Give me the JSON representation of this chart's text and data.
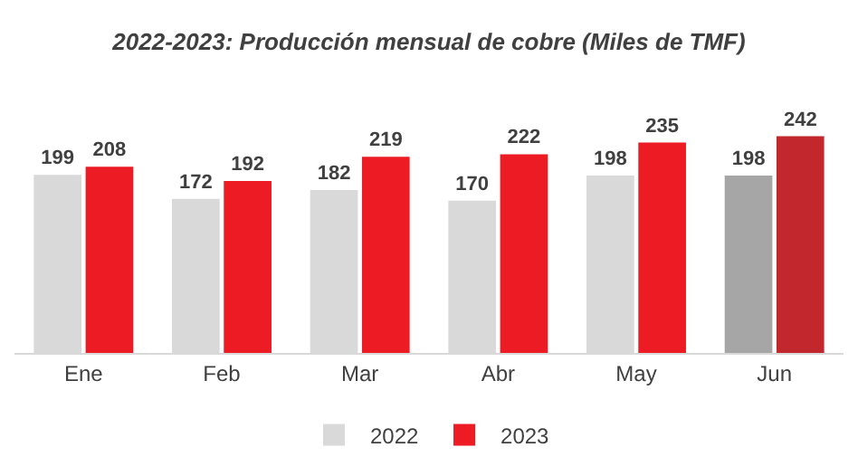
{
  "chart_data": {
    "type": "bar",
    "title": "2022-2023: Producción mensual de cobre (Miles de TMF)",
    "categories": [
      "Ene",
      "Feb",
      "Mar",
      "Abr",
      "May",
      "Jun"
    ],
    "series": [
      {
        "name": "2022",
        "colors": [
          "#d9d9d9",
          "#d9d9d9",
          "#d9d9d9",
          "#d9d9d9",
          "#d9d9d9",
          "#a6a6a6"
        ],
        "values": [
          199,
          172,
          182,
          170,
          198,
          198
        ]
      },
      {
        "name": "2023",
        "colors": [
          "#ed1c24",
          "#ed1c24",
          "#ed1c24",
          "#ed1c24",
          "#ed1c24",
          "#c1272d"
        ],
        "values": [
          208,
          192,
          219,
          222,
          235,
          242
        ]
      }
    ],
    "data_labels": true,
    "legend": "bottom",
    "tick_labels": "x"
  }
}
